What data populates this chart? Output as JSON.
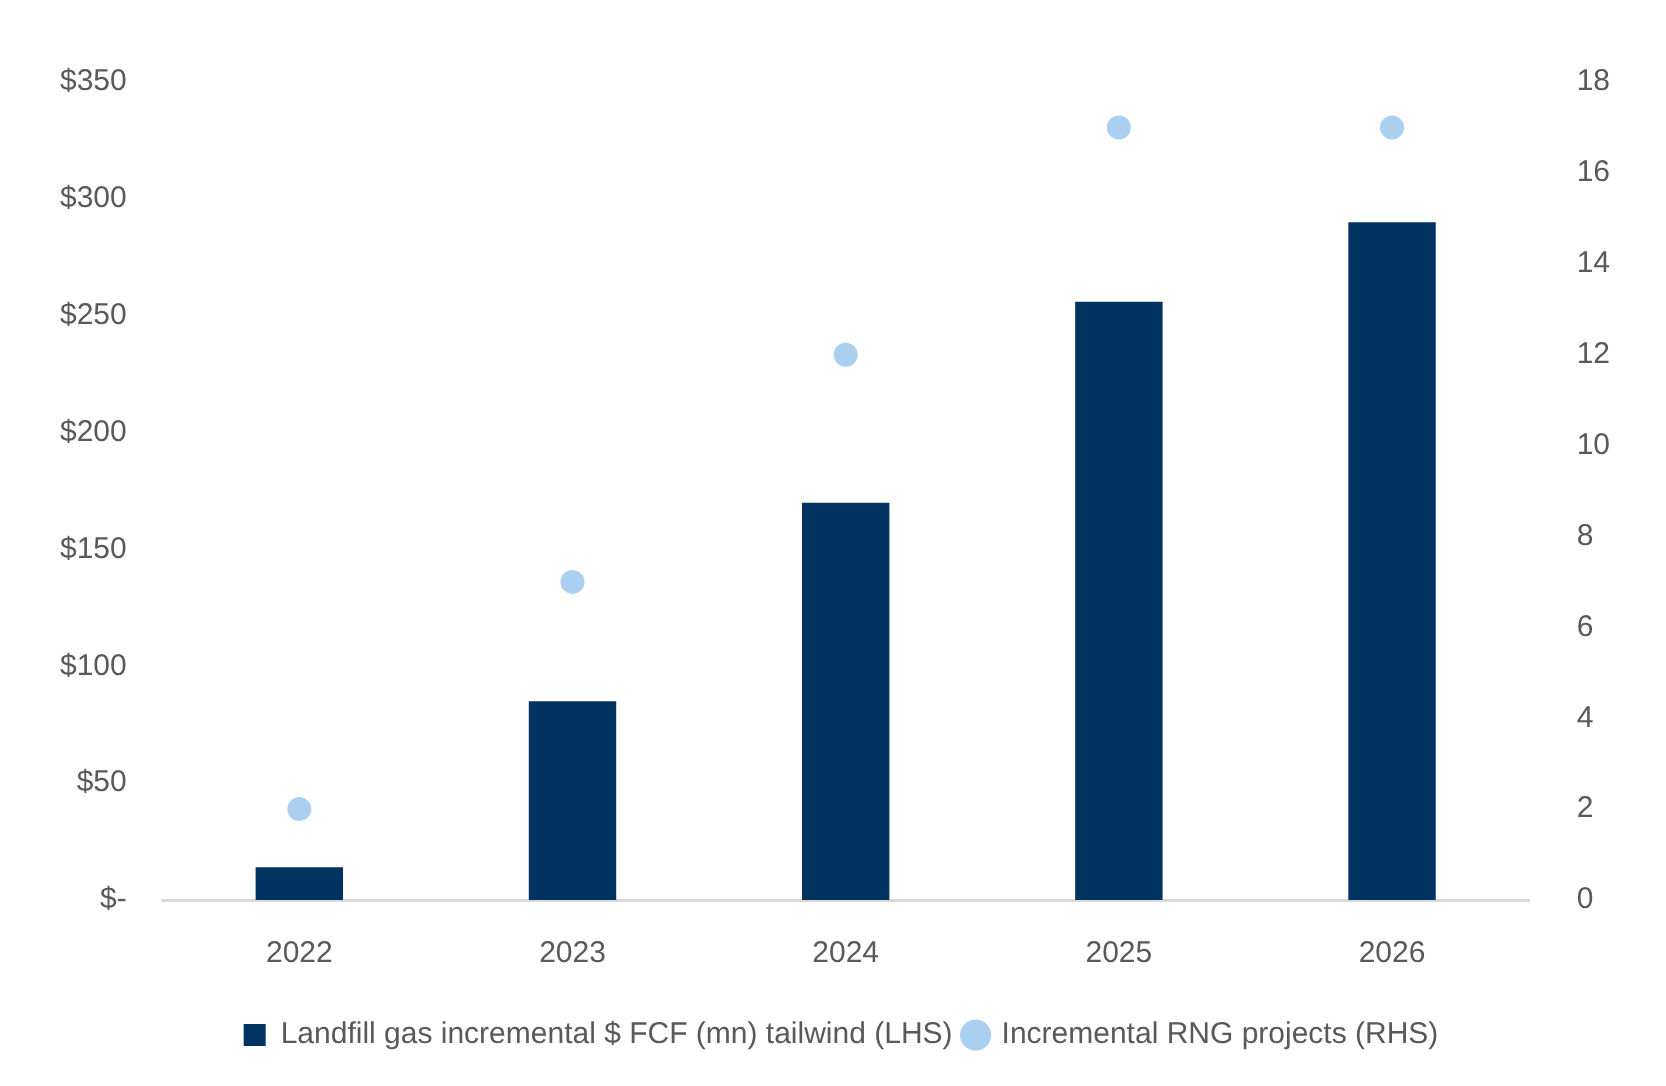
{
  "chart_data": {
    "type": "bar",
    "categories": [
      "2022",
      "2023",
      "2024",
      "2025",
      "2026"
    ],
    "series": [
      {
        "name": "Landfill gas incremental $ FCF (mn) tailwind (LHS)",
        "color": "#003360",
        "values": [
          14,
          85,
          170,
          256,
          290
        ]
      },
      {
        "name": "Incremental RNG projects (RHS)",
        "type": "scatter",
        "axis": "y2",
        "marker": "circle",
        "color": "#a9d0f0",
        "values": [
          2,
          7,
          12,
          17,
          17
        ]
      }
    ],
    "ylim": [
      0,
      350
    ],
    "yticks": [
      {
        "value": 0,
        "label": "$-"
      },
      {
        "value": 50,
        "label": "$50"
      },
      {
        "value": 100,
        "label": "$100"
      },
      {
        "value": 150,
        "label": "$150"
      },
      {
        "value": 200,
        "label": "$200"
      },
      {
        "value": 250,
        "label": "$250"
      },
      {
        "value": 300,
        "label": "$300"
      },
      {
        "value": 350,
        "label": "$350"
      }
    ],
    "y2lim": [
      0,
      18
    ],
    "y2ticks": [
      0,
      2,
      4,
      6,
      8,
      10,
      12,
      14,
      16,
      18
    ],
    "grid": false,
    "legend": "bottom"
  }
}
